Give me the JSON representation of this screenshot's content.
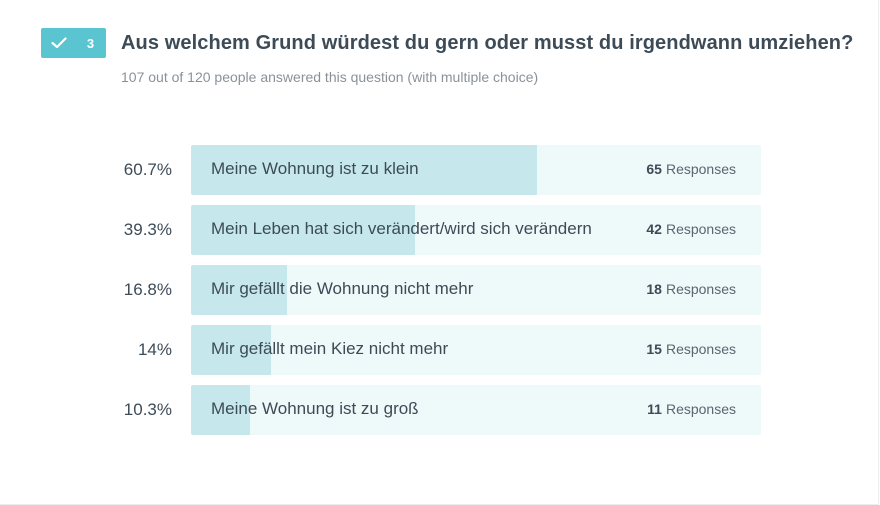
{
  "question": {
    "number": "3",
    "title": "Aus welchem Grund würdest du gern oder musst du irgendwann umziehen?",
    "subtitle": "107 out of 120 people answered this question (with multiple choice)"
  },
  "colors": {
    "badge": "#5bc4d1",
    "track": "#eef9fa",
    "fill": "#c6e8ec"
  },
  "icons": {
    "badge_icon": "check-icon"
  },
  "responses_label": "Responses",
  "chart_data": {
    "type": "bar",
    "orientation": "horizontal",
    "categories": [
      "Meine Wohnung ist zu klein",
      "Mein Leben hat sich verändert/wird sich verändern",
      "Mir gefällt die Wohnung nicht mehr",
      "Mir gefällt mein Kiez nicht mehr",
      "Meine Wohnung ist zu groß"
    ],
    "values": [
      60.7,
      39.3,
      16.8,
      14,
      10.3
    ],
    "percent_labels": [
      "60.7%",
      "39.3%",
      "16.8%",
      "14%",
      "10.3%"
    ],
    "counts": [
      65,
      42,
      18,
      15,
      11
    ],
    "xlim": [
      0,
      100
    ]
  }
}
